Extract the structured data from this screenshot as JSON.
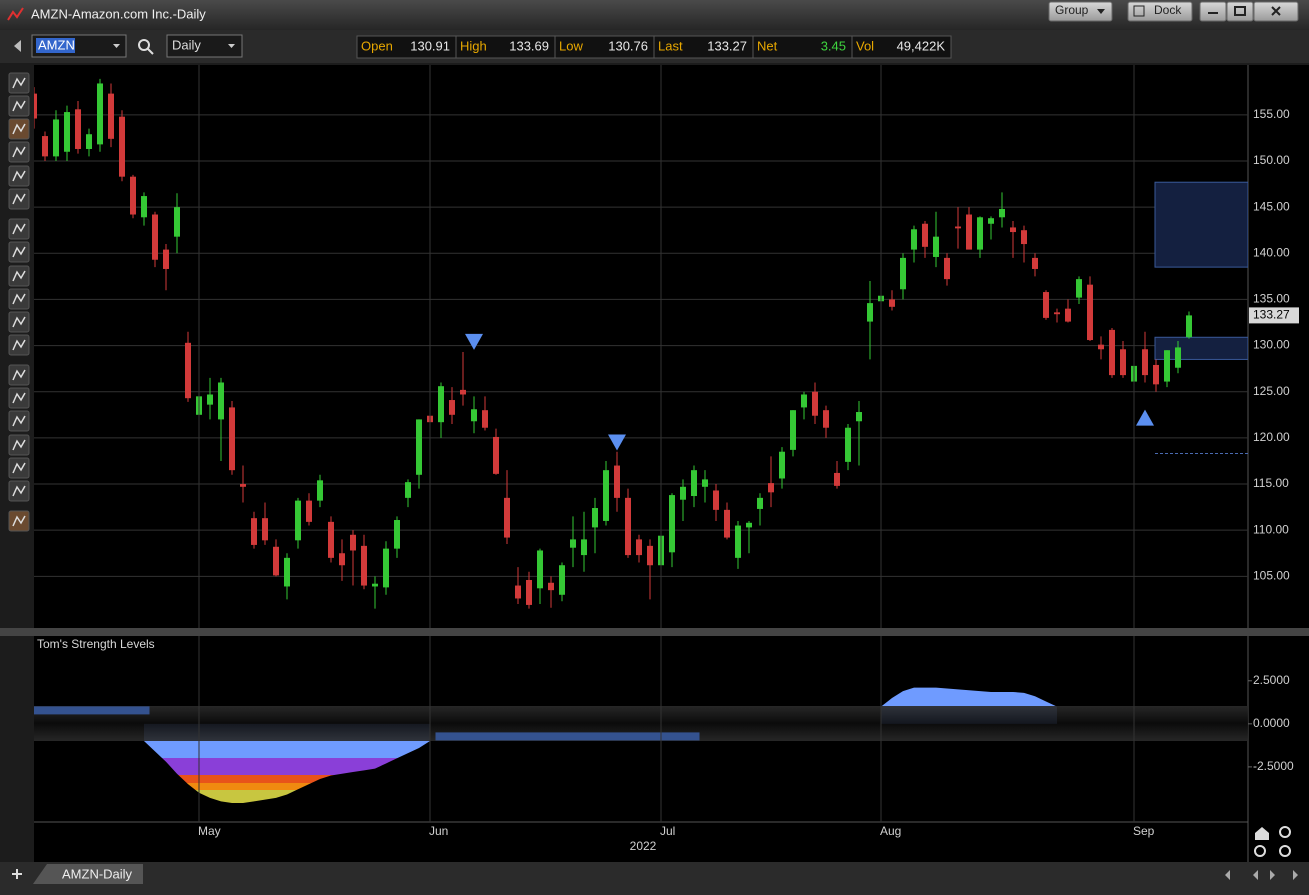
{
  "window": {
    "title": "AMZN-Amazon.com Inc.-Daily",
    "group": "Group",
    "dock": "Dock"
  },
  "toolbar": {
    "symbol": "AMZN",
    "interval": "Daily"
  },
  "quote": [
    {
      "label": "Open",
      "value": 130.91
    },
    {
      "label": "High",
      "value": 133.69
    },
    {
      "label": "Low",
      "value": 130.76
    },
    {
      "label": "Last",
      "value": 133.27
    },
    {
      "label": "Net",
      "value": 3.45,
      "color": "#3fd43f"
    },
    {
      "label": "Vol",
      "value": "49,422K"
    }
  ],
  "tab": "AMZN-Daily",
  "chart_data": [
    {
      "type": "candlestick",
      "categories": [
        null,
        null,
        null,
        null,
        null,
        null,
        null,
        null,
        null,
        null,
        null,
        null,
        null,
        null,
        null,
        "May",
        null,
        null,
        null,
        null,
        null,
        null,
        null,
        null,
        null,
        null,
        null,
        null,
        null,
        null,
        null,
        null,
        null,
        null,
        null,
        null,
        "Jun",
        null,
        null,
        null,
        null,
        null,
        null,
        null,
        null,
        null,
        null,
        null,
        null,
        null,
        null,
        null,
        null,
        null,
        null,
        null,
        null,
        "Jul",
        null,
        null,
        null,
        null,
        null,
        null,
        null,
        null,
        null,
        null,
        null,
        null,
        null,
        null,
        null,
        null,
        null,
        null,
        null,
        "Aug",
        null,
        null,
        null,
        null,
        null,
        null,
        null,
        null,
        null,
        null,
        null,
        null,
        null,
        null,
        null,
        null,
        null,
        null,
        null,
        null,
        null,
        null,
        "Sep",
        null,
        null,
        null,
        null,
        null
      ],
      "year_label": "2022",
      "open": [
        157.3,
        152.7,
        150.5,
        151.0,
        155.6,
        151.3,
        151.8,
        157.3,
        154.8,
        148.3,
        143.9,
        144.2,
        140.4,
        141.8,
        130.3,
        122.5,
        123.6,
        122.0,
        123.3,
        115.0,
        111.3,
        111.3,
        108.2,
        103.9,
        108.9,
        113.2,
        113.2,
        110.9,
        107.5,
        109.5,
        108.3,
        103.9,
        103.8,
        108.0,
        113.5,
        116.0,
        122.4,
        121.7,
        124.1,
        125.2,
        121.8,
        123.0,
        120.1,
        113.5,
        104.0,
        104.6,
        103.7,
        104.3,
        103.0,
        108.1,
        107.3,
        110.3,
        111.0,
        117.0,
        113.5,
        109.0,
        108.3,
        106.2,
        107.6,
        113.3,
        113.7,
        114.7,
        114.3,
        112.2,
        107.0,
        110.3,
        112.3,
        115.1,
        115.6,
        118.7,
        123.3,
        125.0,
        123.0,
        116.2,
        117.4,
        121.8,
        132.6,
        134.8,
        135.0,
        136.1,
        140.4,
        143.2,
        139.6,
        139.5,
        142.9,
        144.2,
        140.4,
        143.2,
        143.9,
        142.8,
        142.5,
        139.5,
        135.8,
        133.6,
        134.0,
        135.2,
        136.6,
        130.1,
        131.7,
        129.6,
        126.1,
        129.6,
        127.9,
        126.1,
        127.6,
        130.91
      ],
      "high": [
        158.0,
        153.2,
        155.5,
        156.0,
        156.5,
        153.5,
        158.9,
        158.4,
        155.5,
        148.5,
        146.6,
        144.5,
        141.0,
        146.5,
        131.5,
        125.0,
        126.5,
        126.5,
        124.0,
        117.0,
        112.0,
        113.0,
        109.0,
        107.5,
        113.5,
        114.0,
        116.0,
        111.5,
        109.0,
        110.0,
        109.5,
        105.0,
        108.8,
        111.5,
        115.5,
        122.0,
        125.0,
        126.0,
        125.5,
        129.3,
        124.5,
        124.5,
        121.0,
        116.5,
        106.0,
        105.5,
        108.0,
        105.0,
        106.5,
        111.5,
        112.0,
        113.5,
        117.5,
        118.5,
        114.5,
        109.5,
        109.0,
        109.5,
        114.0,
        115.5,
        117.0,
        116.5,
        115.0,
        113.0,
        111.0,
        111.0,
        114.0,
        118.0,
        119.0,
        123.0,
        125.0,
        126.0,
        123.5,
        117.5,
        121.5,
        124.0,
        137.0,
        136.7,
        136.0,
        140.0,
        143.0,
        143.5,
        144.5,
        140.0,
        145.0,
        145.0,
        144.0,
        144.0,
        146.6,
        143.5,
        143.0,
        140.0,
        136.0,
        134.0,
        135.0,
        137.5,
        137.5,
        131.0,
        131.9,
        130.5,
        127.8,
        131.5,
        128.5,
        129.5,
        130.5,
        133.69
      ],
      "low": [
        153.5,
        150.0,
        150.0,
        150.0,
        150.8,
        150.5,
        151.0,
        151.5,
        147.8,
        143.8,
        143.0,
        138.5,
        136.0,
        140.0,
        123.9,
        119.0,
        122.0,
        117.5,
        116.0,
        113.0,
        108.0,
        108.4,
        105.0,
        102.5,
        108.0,
        110.5,
        112.5,
        106.5,
        104.5,
        104.0,
        103.6,
        101.5,
        103.0,
        107.0,
        112.5,
        114.5,
        120.0,
        120.0,
        121.5,
        123.5,
        120.5,
        120.8,
        116.0,
        108.5,
        102.0,
        101.5,
        102.0,
        101.6,
        102.3,
        106.0,
        105.5,
        107.5,
        110.5,
        112.0,
        107.0,
        106.5,
        102.5,
        105.5,
        106.0,
        111.0,
        112.5,
        113.0,
        111.0,
        109.0,
        105.8,
        107.5,
        110.5,
        112.5,
        114.5,
        118.0,
        122.0,
        121.5,
        120.0,
        114.5,
        116.5,
        117.0,
        128.5,
        132.5,
        133.8,
        135.0,
        139.0,
        139.5,
        138.5,
        136.5,
        140.5,
        140.5,
        139.5,
        141.5,
        142.8,
        139.5,
        139.0,
        137.5,
        132.8,
        132.5,
        132.5,
        134.5,
        130.5,
        128.5,
        126.5,
        126.5,
        123.6,
        126.0,
        125.0,
        125.5,
        127.0,
        130.76
      ],
      "close": [
        154.6,
        150.5,
        154.5,
        155.3,
        151.3,
        152.9,
        158.4,
        152.4,
        148.3,
        144.2,
        146.2,
        139.3,
        138.3,
        145.0,
        124.3,
        124.5,
        124.7,
        126.0,
        116.5,
        114.7,
        108.4,
        108.9,
        105.1,
        107.0,
        113.2,
        110.9,
        115.4,
        107.0,
        106.2,
        107.8,
        104.0,
        104.2,
        108.0,
        111.1,
        115.2,
        122.0,
        121.7,
        125.6,
        122.5,
        124.7,
        123.1,
        121.1,
        116.1,
        109.2,
        102.6,
        101.9,
        107.8,
        103.5,
        106.2,
        109.0,
        109.0,
        112.4,
        116.5,
        113.5,
        107.3,
        107.3,
        106.2,
        109.4,
        113.8,
        114.7,
        116.5,
        115.5,
        112.2,
        109.2,
        110.5,
        110.8,
        113.5,
        114.1,
        118.5,
        123.0,
        124.7,
        122.4,
        121.1,
        114.8,
        121.1,
        122.8,
        134.6,
        135.4,
        134.2,
        139.5,
        142.6,
        140.7,
        141.8,
        137.2,
        142.7,
        140.4,
        143.9,
        143.8,
        144.8,
        142.3,
        141.0,
        138.3,
        133.0,
        133.4,
        132.6,
        137.2,
        130.6,
        129.6,
        126.8,
        126.8,
        127.8,
        126.8,
        125.8,
        129.5,
        129.8,
        133.27
      ],
      "up_color": "#35c835",
      "down_color": "#d23a3a",
      "ylim": [
        99.4,
        160.4
      ],
      "yticks": [
        {
          "value": 105,
          "label": "105.00"
        },
        {
          "value": 110,
          "label": "110.00"
        },
        {
          "value": 115,
          "label": "115.00"
        },
        {
          "value": 120,
          "label": "120.00"
        },
        {
          "value": 125,
          "label": "125.00"
        },
        {
          "value": 130,
          "label": "130.00"
        },
        {
          "value": 135,
          "label": "135.00"
        },
        {
          "value": 140,
          "label": "140.00"
        },
        {
          "value": 145,
          "label": "145.00"
        },
        {
          "value": 150,
          "label": "150.00"
        },
        {
          "value": 155,
          "label": "155.00"
        }
      ],
      "grid": true,
      "zones": [
        {
          "top": 147.7,
          "bottom": 138.5
        },
        {
          "top": 130.9,
          "bottom": 128.5
        }
      ],
      "target_line": 118.3,
      "sell_signals": [
        {
          "index": 40,
          "price": 130.4
        },
        {
          "index": 53,
          "price": 119.5
        }
      ],
      "buy_signals": [
        {
          "index": 101,
          "price": 122.2
        }
      ],
      "signal_color": "#5b8ff0"
    },
    {
      "type": "area",
      "title": "Tom's Strength Levels",
      "values": [
        null,
        null,
        null,
        null,
        null,
        null,
        null,
        null,
        null,
        null,
        -1.0,
        -1.6,
        -2.2,
        -2.9,
        -3.5,
        -4.0,
        -4.3,
        -4.5,
        -4.6,
        -4.6,
        -4.5,
        -4.4,
        -4.3,
        -4.1,
        -3.8,
        -3.5,
        -3.2,
        -3.0,
        -2.9,
        -2.8,
        -2.7,
        -2.6,
        -2.3,
        -2.0,
        -1.7,
        -1.4,
        -1.0,
        null,
        null,
        null,
        null,
        null,
        null,
        null,
        null,
        null,
        null,
        null,
        null,
        null,
        null,
        null,
        null,
        null,
        null,
        null,
        null,
        null,
        null,
        null,
        null,
        null,
        null,
        null,
        null,
        null,
        null,
        null,
        null,
        null,
        null,
        null,
        null,
        null,
        null,
        null,
        null,
        1.0,
        1.5,
        1.9,
        2.1,
        2.1,
        2.1,
        2.05,
        2.0,
        1.95,
        1.9,
        1.85,
        1.85,
        1.85,
        1.8,
        1.6,
        1.3,
        1.0,
        null,
        null,
        null,
        null,
        null,
        null,
        null,
        null,
        null,
        null,
        null,
        null,
        null
      ],
      "level_bars": [
        {
          "from": 0,
          "to": 10,
          "value": 0.78
        },
        {
          "from": 37,
          "to": 60,
          "value": -0.73
        }
      ],
      "bar_color": "#34528f",
      "ylim": [
        -5.7,
        5.1
      ],
      "yticks": [
        {
          "value": 2.5,
          "label": "2.5000"
        },
        {
          "value": 0,
          "label": "0.0000"
        },
        {
          "value": -2.5,
          "label": "-2.5000"
        }
      ],
      "grid": false
    }
  ]
}
